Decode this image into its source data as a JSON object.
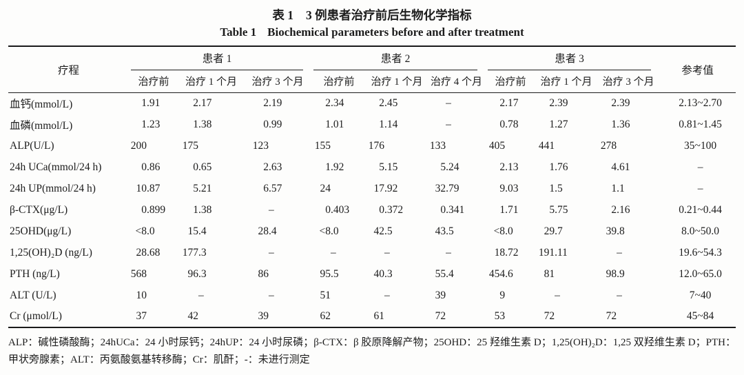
{
  "title_cn": {
    "label": "表 1",
    "text": "3 例患者治疗前后生物化学指标"
  },
  "title_en": {
    "label": "Table 1",
    "text": "Biochemical parameters before and after treatment"
  },
  "table": {
    "col1_header": "疗程",
    "ref_header": "参考值",
    "groups": [
      {
        "label": "患者 1",
        "cols": [
          "治疗前",
          "治疗 1 个月",
          "治疗 3 个月"
        ]
      },
      {
        "label": "患者 2",
        "cols": [
          "治疗前",
          "治疗 1 个月",
          "治疗 4 个月"
        ]
      },
      {
        "label": "患者 3",
        "cols": [
          "治疗前",
          "治疗 1 个月",
          "治疗 3 个月"
        ]
      }
    ],
    "not_measured_symbol": "–",
    "rows": [
      {
        "label": "血钙(mmol/L)",
        "values": [
          "1.91",
          "2.17",
          "2.19",
          "2.34",
          "2.45",
          "–",
          "2.17",
          "2.39",
          "2.39"
        ],
        "ref": "2.13~2.70"
      },
      {
        "label": "血磷(mmol/L)",
        "values": [
          "1.23",
          "1.38",
          "0.99",
          "1.01",
          "1.14",
          "–",
          "0.78",
          "1.27",
          "1.36"
        ],
        "ref": "0.81~1.45"
      },
      {
        "label": "ALP(U/L)",
        "values": [
          "200",
          "175",
          "123",
          "155",
          "176",
          "133",
          "405",
          "441",
          "278"
        ],
        "ref": "35~100"
      },
      {
        "label": "24h UCa(mmol/24 h)",
        "values": [
          "0.86",
          "0.65",
          "2.63",
          "1.92",
          "5.15",
          "5.24",
          "2.13",
          "1.76",
          "4.61"
        ],
        "ref": "–"
      },
      {
        "label": "24h UP(mmol/24 h)",
        "values": [
          "10.87",
          "5.21",
          "6.57",
          "24",
          "17.92",
          "32.79",
          "9.03",
          "1.5",
          "1.1"
        ],
        "ref": "–"
      },
      {
        "label": "β-CTX(μg/L)",
        "values": [
          "0.899",
          "1.38",
          "–",
          "0.403",
          "0.372",
          "0.341",
          "1.71",
          "5.75",
          "2.16"
        ],
        "ref": "0.21~0.44"
      },
      {
        "label": "25OHD(μg/L)",
        "values": [
          "<8.0",
          "15.4",
          "28.4",
          "<8.0",
          "42.5",
          "43.5",
          "<8.0",
          "29.7",
          "39.8"
        ],
        "ref": "8.0~50.0"
      },
      {
        "label": "1,25(OH)₂D (ng/L)",
        "values": [
          "28.68",
          "177.3",
          "–",
          "–",
          "–",
          "–",
          "18.72",
          "191.11",
          "–"
        ],
        "ref": "19.6~54.3"
      },
      {
        "label": "PTH (ng/L)",
        "values": [
          "568",
          "96.3",
          "86",
          "95.5",
          "40.3",
          "55.4",
          "454.6",
          "81",
          "98.9"
        ],
        "ref": "12.0~65.0"
      },
      {
        "label": "ALT (U/L)",
        "values": [
          "10",
          "–",
          "–",
          "51",
          "–",
          "39",
          "9",
          "–",
          "–"
        ],
        "ref": "7~40"
      },
      {
        "label": "Cr (μmol/L)",
        "values": [
          "37",
          "42",
          "39",
          "62",
          "61",
          "72",
          "53",
          "72",
          "72"
        ],
        "ref": "45~84"
      }
    ]
  },
  "footnote": "ALP：碱性磷酸酶；24hUCa：24 小时尿钙；24hUP：24 小时尿磷；β-CTX：β 胶原降解产物；25OHD：25 羟维生素 D；1,25(OH)₂D：1,25 双羟维生素 D；PTH：甲状旁腺素；ALT：丙氨酸氨基转移酶；Cr：肌酐；-：未进行测定"
}
